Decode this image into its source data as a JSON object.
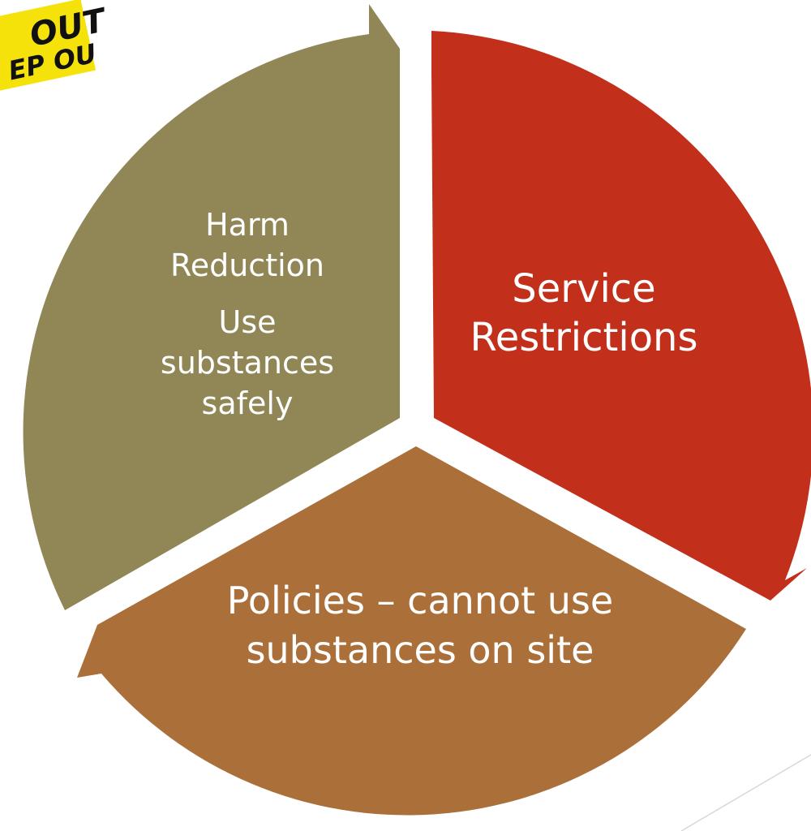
{
  "tape": [
    "OUT",
    "EP OU"
  ],
  "segments": [
    {
      "title": "Harm Reduction",
      "subtitle": "Use substances safely"
    },
    {
      "title": "Service Restrictions"
    },
    {
      "title": "Policies – cannot use substances on site"
    }
  ]
}
